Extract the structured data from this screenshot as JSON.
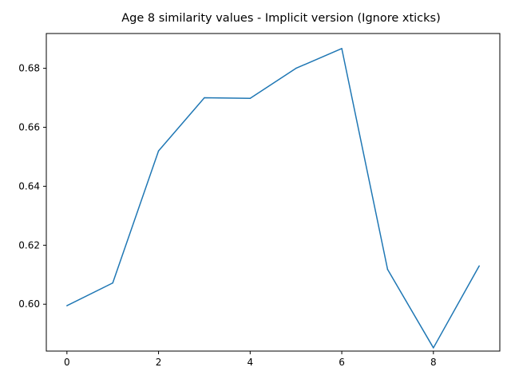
{
  "chart_data": {
    "type": "line",
    "title": "Age 8 similarity values - Implicit version (Ignore xticks)",
    "xlabel": "",
    "ylabel": "",
    "x": [
      0,
      1,
      2,
      3,
      4,
      5,
      6,
      7,
      8,
      9
    ],
    "series": [
      {
        "name": "",
        "color": "#1f77b4",
        "values": [
          0.5995,
          0.6072,
          0.652,
          0.67,
          0.6698,
          0.68,
          0.6867,
          0.6118,
          0.5852,
          0.613
        ]
      }
    ],
    "xlim": [
      -0.45,
      9.45
    ],
    "ylim": [
      0.5841,
      0.6918
    ],
    "xticks": [
      0,
      2,
      4,
      6,
      8
    ],
    "xtick_labels": [
      "0",
      "2",
      "4",
      "6",
      "8"
    ],
    "yticks": [
      0.6,
      0.62,
      0.64,
      0.66,
      0.68
    ],
    "ytick_labels": [
      "0.60",
      "0.62",
      "0.64",
      "0.66",
      "0.68"
    ],
    "grid": false,
    "legend": "none"
  }
}
